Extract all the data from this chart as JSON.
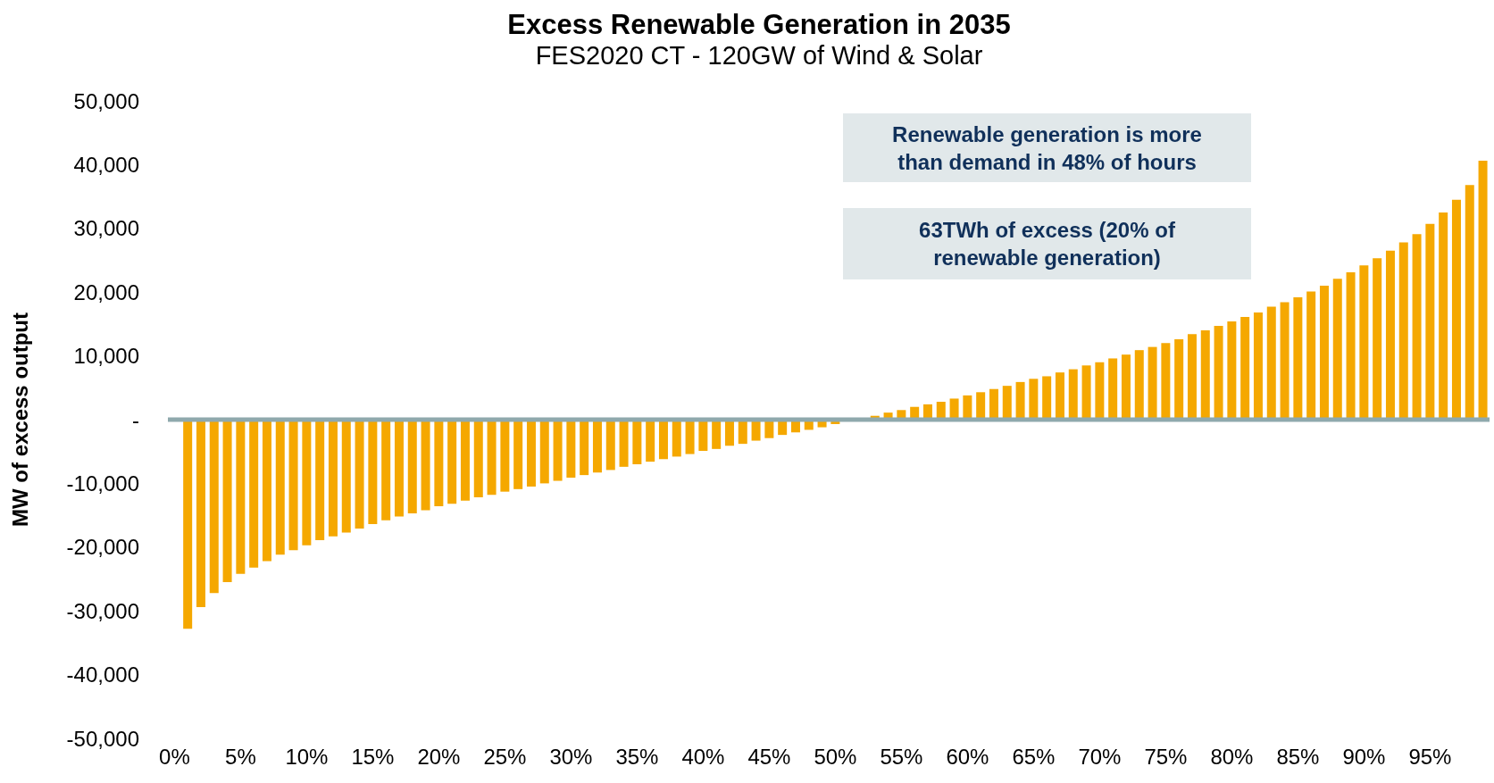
{
  "chart_data": {
    "type": "bar",
    "title": "Excess Renewable Generation in 2035",
    "subtitle": "FES2020 CT - 120GW of Wind & Solar",
    "ylabel": "MW of excess output",
    "categories": [
      "0%",
      null,
      null,
      null,
      null,
      "5%",
      null,
      null,
      null,
      null,
      "10%",
      null,
      null,
      null,
      null,
      "15%",
      null,
      null,
      null,
      null,
      "20%",
      null,
      null,
      null,
      null,
      "25%",
      null,
      null,
      null,
      null,
      "30%",
      null,
      null,
      null,
      null,
      "35%",
      null,
      null,
      null,
      null,
      "40%",
      null,
      null,
      null,
      null,
      "45%",
      null,
      null,
      null,
      null,
      "50%",
      null,
      null,
      null,
      null,
      "55%",
      null,
      null,
      null,
      null,
      "60%",
      null,
      null,
      null,
      null,
      "65%",
      null,
      null,
      null,
      null,
      "70%",
      null,
      null,
      null,
      null,
      "75%",
      null,
      null,
      null,
      null,
      "80%",
      null,
      null,
      null,
      null,
      "85%",
      null,
      null,
      null,
      null,
      "90%",
      null,
      null,
      null,
      null,
      "95%",
      null,
      null,
      null,
      null
    ],
    "values": [
      null,
      -32800,
      -29400,
      -27200,
      -25500,
      -24200,
      -23200,
      -22200,
      -21200,
      -20500,
      -19700,
      -18900,
      -18300,
      -17700,
      -17100,
      -16400,
      -15800,
      -15200,
      -14700,
      -14200,
      -13600,
      -13200,
      -12700,
      -12200,
      -11800,
      -11300,
      -10900,
      -10500,
      -10000,
      -9600,
      -9100,
      -8700,
      -8300,
      -7900,
      -7400,
      -7000,
      -6600,
      -6200,
      -5800,
      -5400,
      -4900,
      -4600,
      -4100,
      -3800,
      -3300,
      -2900,
      -2400,
      -2000,
      -1600,
      -1200,
      -700,
      null,
      null,
      600,
      1100,
      1500,
      2000,
      2400,
      2800,
      3300,
      3800,
      4300,
      4800,
      5300,
      5900,
      6400,
      6800,
      7400,
      7900,
      8500,
      9000,
      9600,
      10200,
      10900,
      11400,
      12000,
      12600,
      13400,
      14000,
      14700,
      15400,
      16100,
      16800,
      17700,
      18400,
      19200,
      20100,
      21000,
      22100,
      23100,
      24200,
      25300,
      26500,
      27800,
      29100,
      30700,
      32500,
      34500,
      36800,
      40600
    ],
    "color": "#f5a800",
    "ylim": [
      -50000,
      50000
    ],
    "yticks": [
      {
        "value": -50000,
        "label": "-50,000"
      },
      {
        "value": -40000,
        "label": "-40,000"
      },
      {
        "value": -30000,
        "label": "-30,000"
      },
      {
        "value": -20000,
        "label": "-20,000"
      },
      {
        "value": -10000,
        "label": "-10,000"
      },
      {
        "value": 0,
        "label": "-"
      },
      {
        "value": 10000,
        "label": "10,000"
      },
      {
        "value": 20000,
        "label": "20,000"
      },
      {
        "value": 30000,
        "label": "30,000"
      },
      {
        "value": 40000,
        "label": "40,000"
      },
      {
        "value": 50000,
        "label": "50,000"
      }
    ],
    "annotations": [
      "Renewable generation is more than demand in 48% of hours",
      "63TWh of excess (20% of renewable generation)"
    ]
  }
}
